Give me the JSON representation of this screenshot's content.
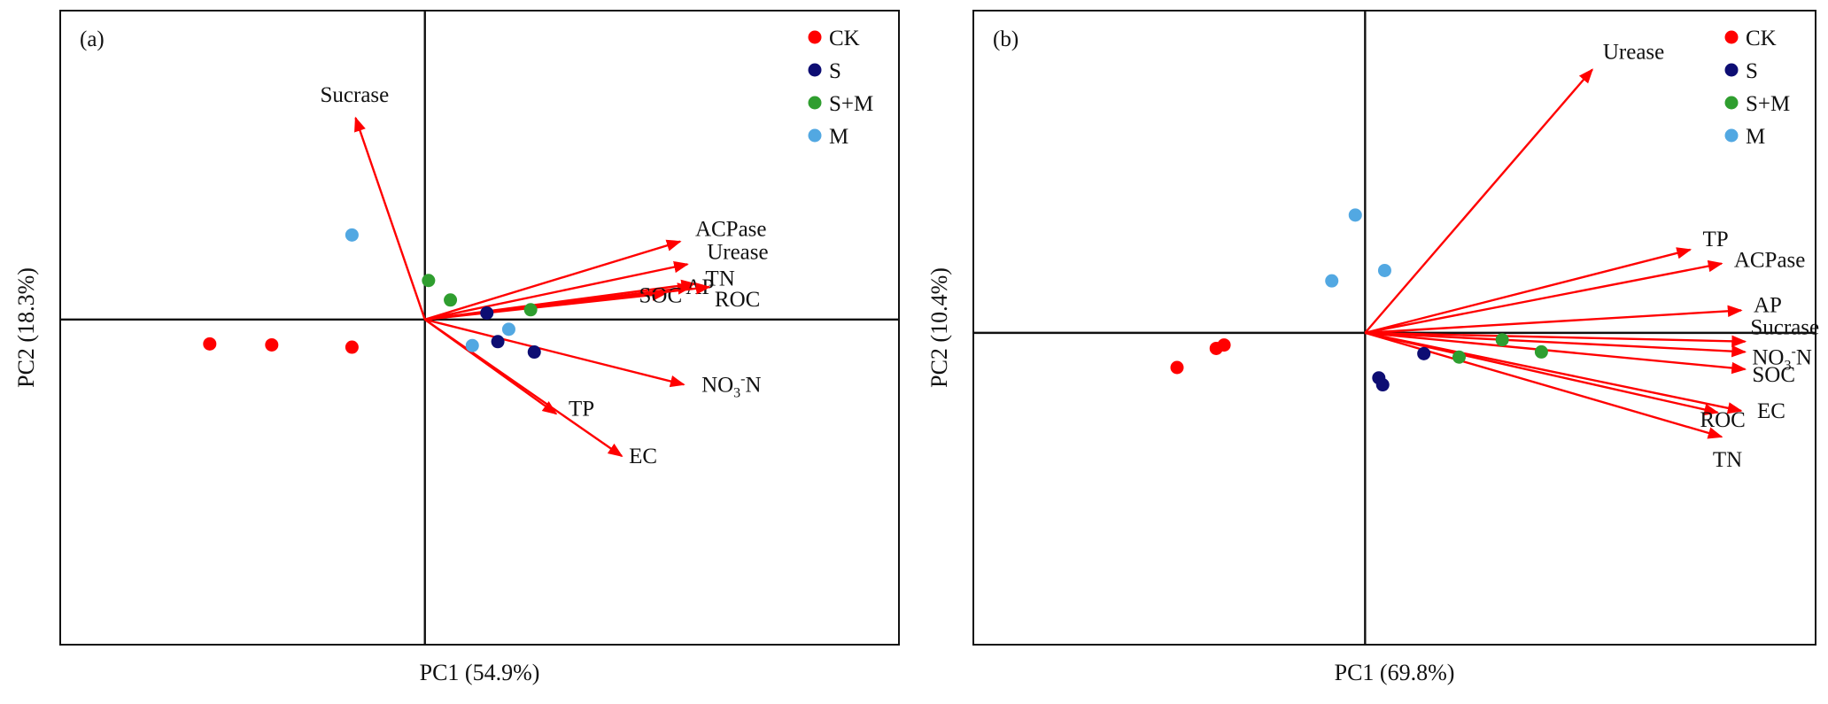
{
  "colors": {
    "CK": "#ff0000",
    "S": "#0d0d73",
    "S+M": "#2f9e2f",
    "M": "#52a8e2",
    "arrow": "#ff0000"
  },
  "legend": [
    "CK",
    "S",
    "S+M",
    "M"
  ],
  "chart_data": [
    {
      "type": "scatter",
      "panel": "(a)",
      "xlabel": "PC1 (54.9%)",
      "ylabel": "PC2 (18.3%)",
      "xlim": [
        -1.0,
        1.3
      ],
      "ylim": [
        -1.0,
        0.95
      ],
      "legend_position": "top-right",
      "points": [
        {
          "group": "CK",
          "x": -0.59,
          "y": -0.075
        },
        {
          "group": "CK",
          "x": -0.42,
          "y": -0.078
        },
        {
          "group": "CK",
          "x": -0.2,
          "y": -0.085
        },
        {
          "group": "S",
          "x": 0.17,
          "y": 0.02
        },
        {
          "group": "S",
          "x": 0.2,
          "y": -0.068
        },
        {
          "group": "S",
          "x": 0.3,
          "y": -0.1
        },
        {
          "group": "S+M",
          "x": 0.01,
          "y": 0.12
        },
        {
          "group": "S+M",
          "x": 0.07,
          "y": 0.06
        },
        {
          "group": "S+M",
          "x": 0.29,
          "y": 0.03
        },
        {
          "group": "M",
          "x": -0.2,
          "y": 0.26
        },
        {
          "group": "M",
          "x": 0.13,
          "y": -0.08
        },
        {
          "group": "M",
          "x": 0.23,
          "y": -0.03
        }
      ],
      "loadings": [
        {
          "name": "Sucrase",
          "x": -0.19,
          "y": 0.62,
          "sub": "",
          "tail": ""
        },
        {
          "name": "ACPase",
          "x": 0.7,
          "y": 0.24,
          "sub": "",
          "tail": ""
        },
        {
          "name": "Urease",
          "x": 0.72,
          "y": 0.17,
          "sub": "",
          "tail": ""
        },
        {
          "name": "TN",
          "x": 0.74,
          "y": 0.11,
          "sub": "",
          "tail": ""
        },
        {
          "name": "AP",
          "x": 0.73,
          "y": 0.1,
          "sub": "",
          "tail": ""
        },
        {
          "name": "SOC",
          "x": 0.66,
          "y": 0.08,
          "sub": "",
          "tail": ""
        },
        {
          "name": "ROC",
          "x": 0.78,
          "y": 0.1,
          "sub": "",
          "tail": ""
        },
        {
          "name": "NO",
          "x": 0.71,
          "y": -0.2,
          "sub": "3",
          "tail": "-N"
        },
        {
          "name": "TP",
          "x": 0.36,
          "y": -0.29,
          "sub": "",
          "tail": ""
        },
        {
          "name": "EC",
          "x": 0.54,
          "y": -0.42,
          "sub": "",
          "tail": ""
        }
      ]
    },
    {
      "type": "scatter",
      "panel": "(b)",
      "xlabel": "PC1 (69.8%)",
      "ylabel": "PC2 (10.4%)",
      "xlim": [
        -1.0,
        1.15
      ],
      "ylim": [
        -0.9,
        0.93
      ],
      "legend_position": "top-right",
      "points": [
        {
          "group": "CK",
          "x": -0.48,
          "y": -0.1
        },
        {
          "group": "CK",
          "x": -0.38,
          "y": -0.045
        },
        {
          "group": "CK",
          "x": -0.36,
          "y": -0.035
        },
        {
          "group": "S",
          "x": 0.035,
          "y": -0.13
        },
        {
          "group": "S",
          "x": 0.045,
          "y": -0.15
        },
        {
          "group": "S",
          "x": 0.15,
          "y": -0.06
        },
        {
          "group": "S+M",
          "x": 0.24,
          "y": -0.07
        },
        {
          "group": "S+M",
          "x": 0.35,
          "y": -0.02
        },
        {
          "group": "S+M",
          "x": 0.45,
          "y": -0.055
        },
        {
          "group": "M",
          "x": -0.025,
          "y": 0.34
        },
        {
          "group": "M",
          "x": -0.085,
          "y": 0.15
        },
        {
          "group": "M",
          "x": 0.05,
          "y": 0.18
        }
      ],
      "loadings": [
        {
          "name": "Urease",
          "x": 0.58,
          "y": 0.76,
          "sub": "",
          "tail": ""
        },
        {
          "name": "TP",
          "x": 0.83,
          "y": 0.24,
          "sub": "",
          "tail": ""
        },
        {
          "name": "ACPase",
          "x": 0.91,
          "y": 0.2,
          "sub": "",
          "tail": ""
        },
        {
          "name": "AP",
          "x": 0.96,
          "y": 0.065,
          "sub": "",
          "tail": ""
        },
        {
          "name": "Sucrase",
          "x": 0.97,
          "y": -0.025,
          "sub": "",
          "tail": ""
        },
        {
          "name": "NO",
          "x": 0.97,
          "y": -0.055,
          "sub": "3",
          "tail": "-N"
        },
        {
          "name": "SOC",
          "x": 0.97,
          "y": -0.105,
          "sub": "",
          "tail": ""
        },
        {
          "name": "ROC",
          "x": 0.9,
          "y": -0.23,
          "sub": "",
          "tail": ""
        },
        {
          "name": "EC",
          "x": 0.96,
          "y": -0.225,
          "sub": "",
          "tail": ""
        },
        {
          "name": "TN",
          "x": 0.91,
          "y": -0.3,
          "sub": "",
          "tail": ""
        }
      ]
    }
  ]
}
